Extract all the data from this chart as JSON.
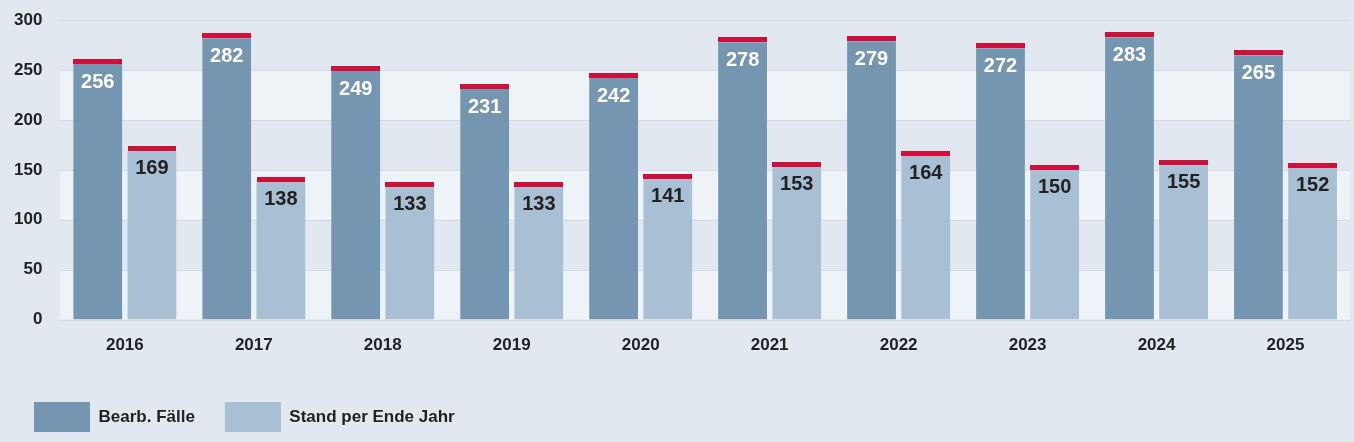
{
  "chart_data": {
    "type": "bar",
    "categories": [
      "2016",
      "2017",
      "2018",
      "2019",
      "2020",
      "2021",
      "2022",
      "2023",
      "2024",
      "2025"
    ],
    "series": [
      {
        "name": "Bearb. Fälle",
        "color": "#7596b0",
        "values": [
          256,
          282,
          249,
          231,
          242,
          278,
          279,
          272,
          283,
          265
        ]
      },
      {
        "name": "Stand per Ende Jahr",
        "color": "#a9bfd4",
        "values": [
          169,
          138,
          133,
          133,
          141,
          153,
          164,
          150,
          155,
          152
        ]
      }
    ],
    "ylim": [
      0,
      300
    ],
    "yticks": [
      0,
      50,
      100,
      150,
      200,
      250,
      300
    ],
    "grid": "y",
    "legend": "bottom left",
    "data_labels": true
  }
}
